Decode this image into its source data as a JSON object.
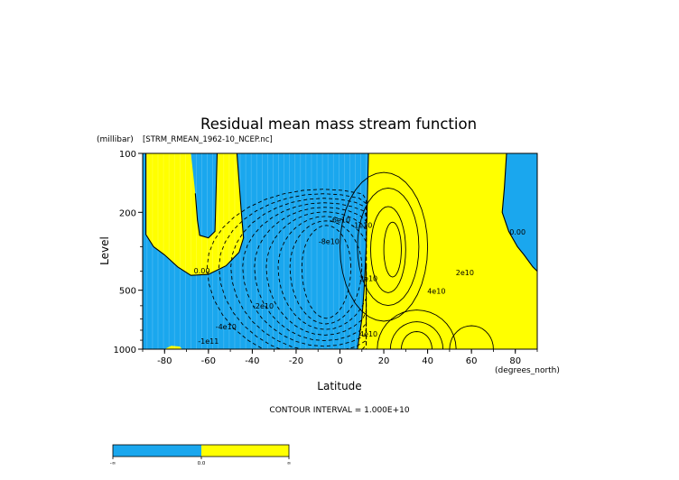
{
  "chart_data": {
    "type": "contour",
    "title": "Residual mean mass stream function",
    "source_label": "[STRM_RMEAN_1962-10_NCEP.nc]",
    "xlabel": "Latitude",
    "x_units": "(degrees_north)",
    "ylabel": "Level",
    "y_units": "(millibar)",
    "x_range": [
      -90,
      90
    ],
    "y_range": [
      1000,
      100
    ],
    "y_scale": "log",
    "x_ticks": [
      {
        "value": -80,
        "label": "-80"
      },
      {
        "value": -60,
        "label": "-60"
      },
      {
        "value": -40,
        "label": "-40"
      },
      {
        "value": -20,
        "label": "-20"
      },
      {
        "value": 0,
        "label": "0"
      },
      {
        "value": 20,
        "label": "20"
      },
      {
        "value": 40,
        "label": "40"
      },
      {
        "value": 60,
        "label": "60"
      },
      {
        "value": 80,
        "label": "80"
      }
    ],
    "y_ticks": [
      {
        "value": 100,
        "label": "100"
      },
      {
        "value": 200,
        "label": "200"
      },
      {
        "value": 500,
        "label": "500"
      },
      {
        "value": 1000,
        "label": "1000"
      }
    ],
    "contour_interval_text": "CONTOUR INTERVAL = 1.000E+10",
    "fill_colors": {
      "negative": "#1aa7ee",
      "positive": "#ffff00"
    },
    "contour_labels": [
      {
        "text": "0.00",
        "lat": -63,
        "p": 410
      },
      {
        "text": "0.00",
        "lat": 81,
        "p": 260
      },
      {
        "text": "-2e10",
        "lat": -35,
        "p": 620
      },
      {
        "text": "-4e10",
        "lat": -52,
        "p": 790
      },
      {
        "text": "-1e11",
        "lat": -60,
        "p": 940
      },
      {
        "text": "-6e10",
        "lat": 0,
        "p": 225
      },
      {
        "text": "-8e10",
        "lat": -5,
        "p": 290
      },
      {
        "text": "-1e10",
        "lat": 10,
        "p": 240
      },
      {
        "text": "2e10",
        "lat": 13,
        "p": 450
      },
      {
        "text": "2e10",
        "lat": 57,
        "p": 420
      },
      {
        "text": "4e10",
        "lat": 44,
        "p": 520
      },
      {
        "text": "4e10",
        "lat": 13,
        "p": 860
      }
    ],
    "colorbar": {
      "min_label": "-∞",
      "mid_label": "0.0",
      "max_label": "∞"
    }
  }
}
